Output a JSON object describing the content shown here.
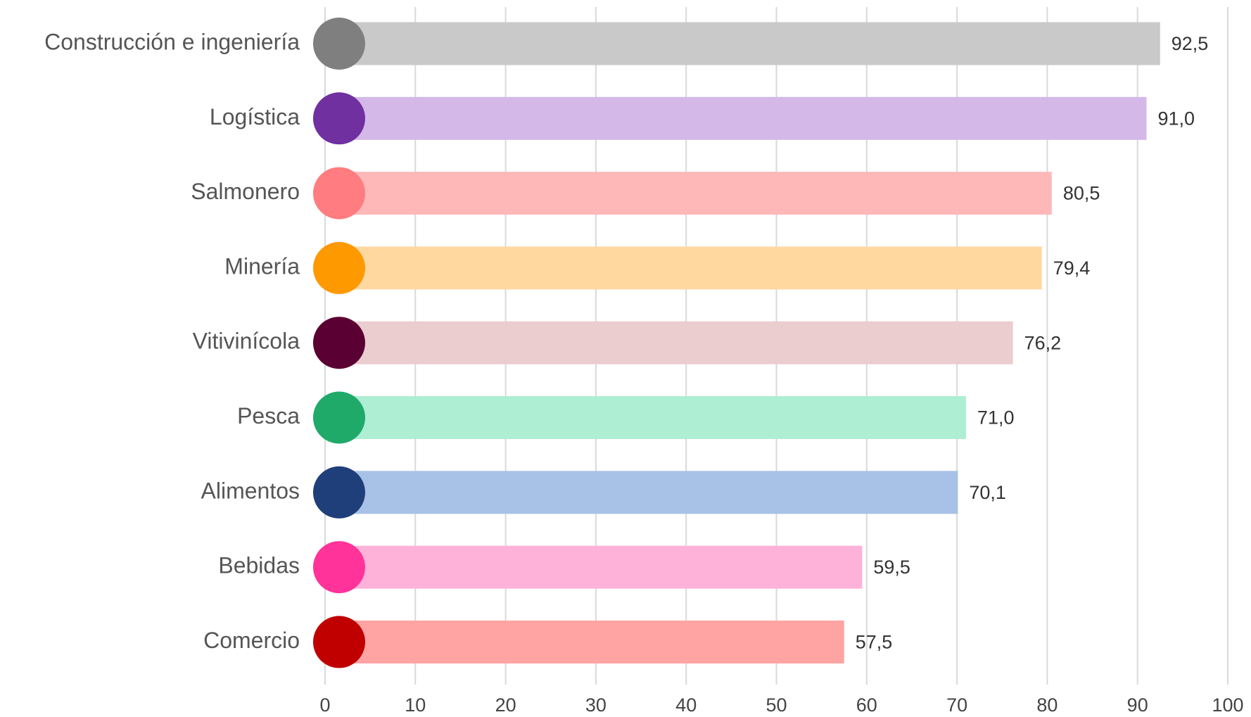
{
  "chart_data": {
    "type": "barh",
    "categories": [
      "Construcción e ingeniería",
      "Logística",
      "Salmonero",
      "Minería",
      "Vitivinícola",
      "Pesca",
      "Alimentos",
      "Bebidas",
      "Comercio"
    ],
    "values": [
      92.5,
      91.0,
      80.5,
      79.4,
      76.2,
      71.0,
      70.1,
      59.5,
      57.5
    ],
    "value_labels": [
      "92,5",
      "91,0",
      "80,5",
      "79,4",
      "76,2",
      "71,0",
      "70,1",
      "59,5",
      "57,5"
    ],
    "colors": [
      "#c9c9c9",
      "#d3b8e8",
      "#ffb8b8",
      "#ffd8a0",
      "#ebcdcf",
      "#aeeed2",
      "#a8c1e6",
      "#ffb2d9",
      "#ffa3a3"
    ],
    "icon_colors": [
      "#7f7f7f",
      "#7030a0",
      "#ff7c80",
      "#ff9900",
      "#5b0032",
      "#1faa6a",
      "#1f3f7a",
      "#ff3399",
      "#c00000"
    ],
    "xlim": [
      0,
      100
    ],
    "xticks": [
      0,
      10,
      20,
      30,
      40,
      50,
      60,
      70,
      80,
      90,
      100
    ],
    "grid": true
  }
}
